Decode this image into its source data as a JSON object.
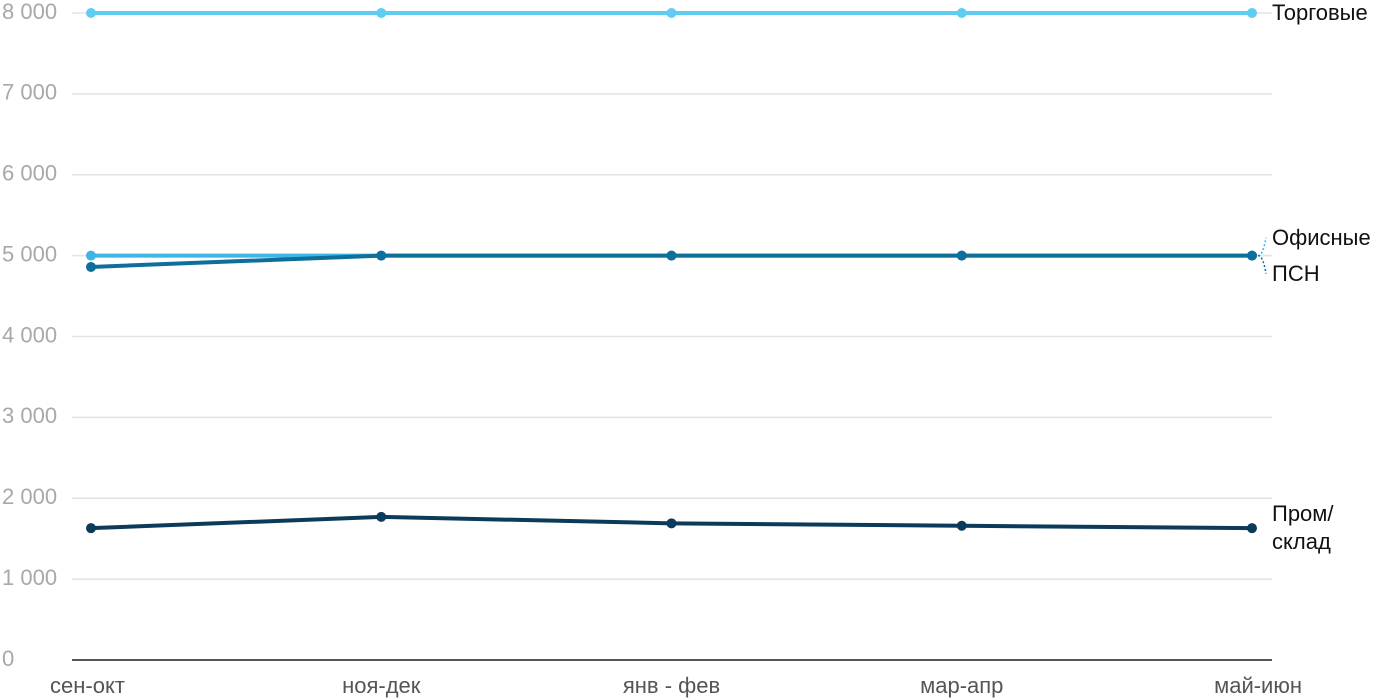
{
  "chart_data": {
    "type": "line",
    "categories": [
      "сен-окт",
      "ноя-дек",
      "янв - фев",
      "мар-апр",
      "май-июн"
    ],
    "series": [
      {
        "name": "Торговые",
        "color": "#5fcdf3",
        "values": [
          8000,
          8000,
          8000,
          8000,
          8000
        ]
      },
      {
        "name": "Офисные",
        "color": "#3fb6e2",
        "values": [
          5000,
          5000,
          5000,
          5000,
          5000
        ]
      },
      {
        "name": "ПСН",
        "color": "#0d6f9a",
        "values": [
          4860,
          5000,
          5000,
          5000,
          5000
        ]
      },
      {
        "name": "Пром/\nсклад",
        "color": "#0b3a5a",
        "values": [
          1630,
          1770,
          1690,
          1660,
          1630
        ]
      }
    ],
    "ylim": [
      0,
      8000
    ],
    "yticks": [
      0,
      {
        "value": 1000,
        "label": "1 000"
      },
      {
        "value": 2000,
        "label": "2 000"
      },
      {
        "value": 3000,
        "label": "3 000"
      },
      {
        "value": 4000,
        "label": "4 000"
      },
      {
        "value": 5000,
        "label": "5 000"
      },
      {
        "value": 6000,
        "label": "6 000"
      },
      {
        "value": 7000,
        "label": "7 000"
      },
      {
        "value": 8000,
        "label": "8 000"
      }
    ],
    "grid": true
  }
}
